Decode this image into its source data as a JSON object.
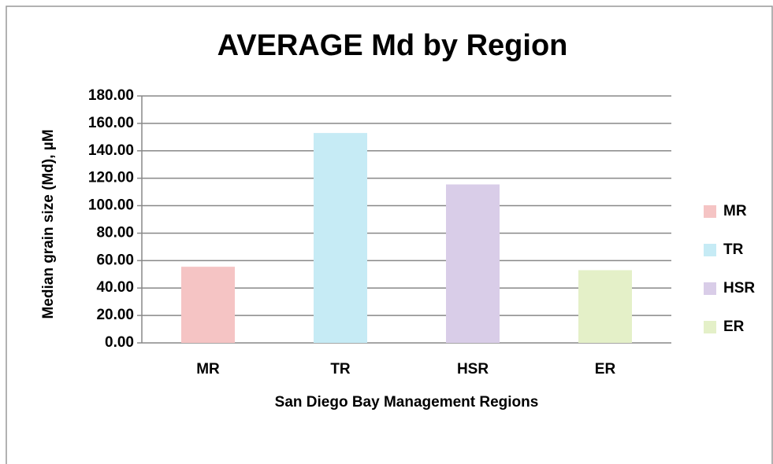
{
  "chart_data": {
    "type": "bar",
    "title": "AVERAGE Md by Region",
    "categories": [
      "MR",
      "TR",
      "HSR",
      "ER"
    ],
    "values": [
      55.5,
      153,
      115.5,
      53
    ],
    "colors": [
      "#f5c4c4",
      "#c6ebf5",
      "#d9cde8",
      "#e4f0c8"
    ],
    "ylim": [
      0,
      180
    ],
    "yticks": [
      {
        "value": 0,
        "label": "0.00"
      },
      {
        "value": 20,
        "label": "20.00"
      },
      {
        "value": 40,
        "label": "40.00"
      },
      {
        "value": 60,
        "label": "60.00"
      },
      {
        "value": 80,
        "label": "80.00"
      },
      {
        "value": 100,
        "label": "100.00"
      },
      {
        "value": 120,
        "label": "120.00"
      },
      {
        "value": 140,
        "label": "140.00"
      },
      {
        "value": 160,
        "label": "160.00"
      },
      {
        "value": 180,
        "label": "180.00"
      }
    ],
    "x_label": "San Diego Bay Management Regions",
    "y_label": "Median grain size (Md), µM",
    "grid": true,
    "legend": "right"
  }
}
